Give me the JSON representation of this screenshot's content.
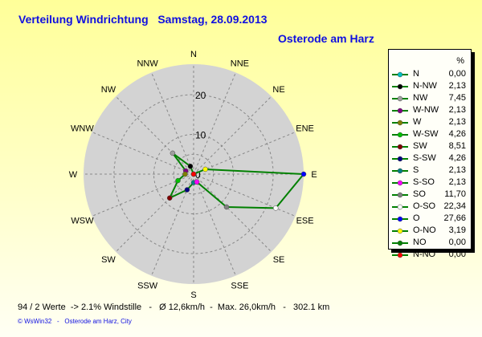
{
  "title": "Verteilung Windrichtung   Samstag, 28.09.2013",
  "subtitle": "Osterode am Harz",
  "chart_data": {
    "type": "radar",
    "title": "Verteilung Windrichtung   Samstag, 28.09.2013",
    "axis_directions": [
      "N",
      "NNE",
      "NE",
      "ENE",
      "E",
      "ESE",
      "SE",
      "SSE",
      "S",
      "SSW",
      "SW",
      "WSW",
      "W",
      "WNW",
      "NW",
      "NNW"
    ],
    "radial_ticks": [
      "0",
      "10",
      "20"
    ],
    "radial_max": 27.66,
    "grid": true,
    "legend_position": "right",
    "legend_header": "%",
    "series": [
      {
        "name": "N",
        "angle": 0,
        "value": 0.0,
        "value_label": "0,00",
        "color": "#00c0c0"
      },
      {
        "name": "N-NW",
        "angle": 337.5,
        "value": 2.13,
        "value_label": "2,13",
        "color": "#000000"
      },
      {
        "name": "NW",
        "angle": 315,
        "value": 7.45,
        "value_label": "7,45",
        "color": "#a0a0a0"
      },
      {
        "name": "W-NW",
        "angle": 292.5,
        "value": 2.13,
        "value_label": "2,13",
        "color": "#800080"
      },
      {
        "name": "W",
        "angle": 270,
        "value": 2.13,
        "value_label": "2,13",
        "color": "#808000"
      },
      {
        "name": "W-SW",
        "angle": 247.5,
        "value": 4.26,
        "value_label": "4,26",
        "color": "#00c000"
      },
      {
        "name": "SW",
        "angle": 225,
        "value": 8.51,
        "value_label": "8,51",
        "color": "#800000"
      },
      {
        "name": "S-SW",
        "angle": 202.5,
        "value": 4.26,
        "value_label": "4,26",
        "color": "#000080"
      },
      {
        "name": "S",
        "angle": 180,
        "value": 2.13,
        "value_label": "2,13",
        "color": "#008080"
      },
      {
        "name": "S-SO",
        "angle": 157.5,
        "value": 2.13,
        "value_label": "2,13",
        "color": "#ff00ff"
      },
      {
        "name": "SO",
        "angle": 135,
        "value": 11.7,
        "value_label": "11,70",
        "color": "#808080"
      },
      {
        "name": "O-SO",
        "angle": 112.5,
        "value": 22.34,
        "value_label": "22,34",
        "color": "#ffffff"
      },
      {
        "name": "O",
        "angle": 90,
        "value": 27.66,
        "value_label": "27,66",
        "color": "#0000ff"
      },
      {
        "name": "O-NO",
        "angle": 67.5,
        "value": 3.19,
        "value_label": "3,19",
        "color": "#ffff00"
      },
      {
        "name": "NO",
        "angle": 45,
        "value": 0.0,
        "value_label": "0,00",
        "color": "#008000"
      },
      {
        "name": "N-NO",
        "angle": 22.5,
        "value": 0.0,
        "value_label": "0,00",
        "color": "#ff0000"
      }
    ],
    "line_color": "#008000",
    "plot_background": "#d3d3d3"
  },
  "stats": "94 / 2 Werte  -> 2.1% Windstille   -   Ø 12,6km/h  -  Max. 26,0km/h   -   302.1 km",
  "credit": "© WsWin32   -   Osterode am Harz, City"
}
